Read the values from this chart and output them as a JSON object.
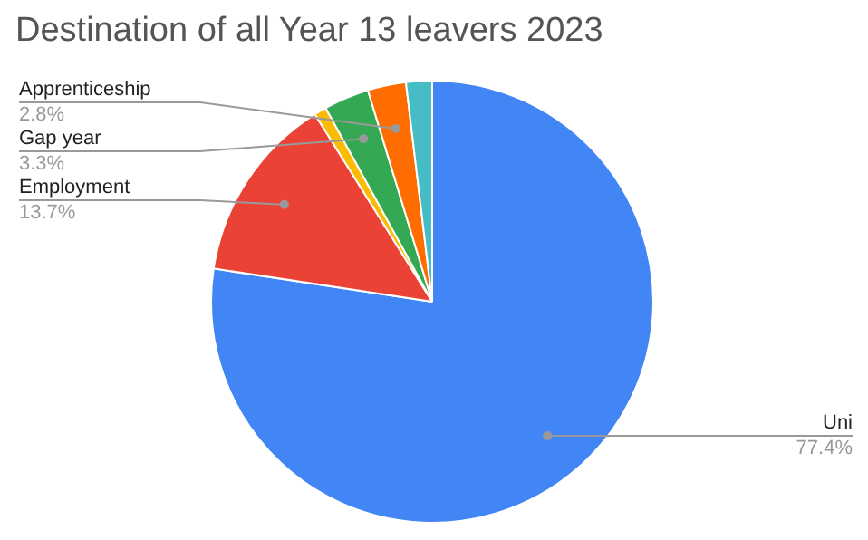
{
  "chart_data": {
    "type": "pie",
    "title": "Destination of all Year 13 leavers 2023",
    "categories": [
      "Uni",
      "Employment",
      null,
      "Gap year",
      "Apprenticeship",
      null
    ],
    "values": [
      77.4,
      13.7,
      0.9,
      3.3,
      2.8,
      1.9
    ],
    "colors": [
      "#4285f4",
      "#ea4335",
      "#fbbc04",
      "#34a853",
      "#ff6d01",
      "#46bdc6"
    ],
    "value_labels": [
      "77.4%",
      "13.7%",
      null,
      "3.3%",
      "2.8%",
      null
    ]
  }
}
